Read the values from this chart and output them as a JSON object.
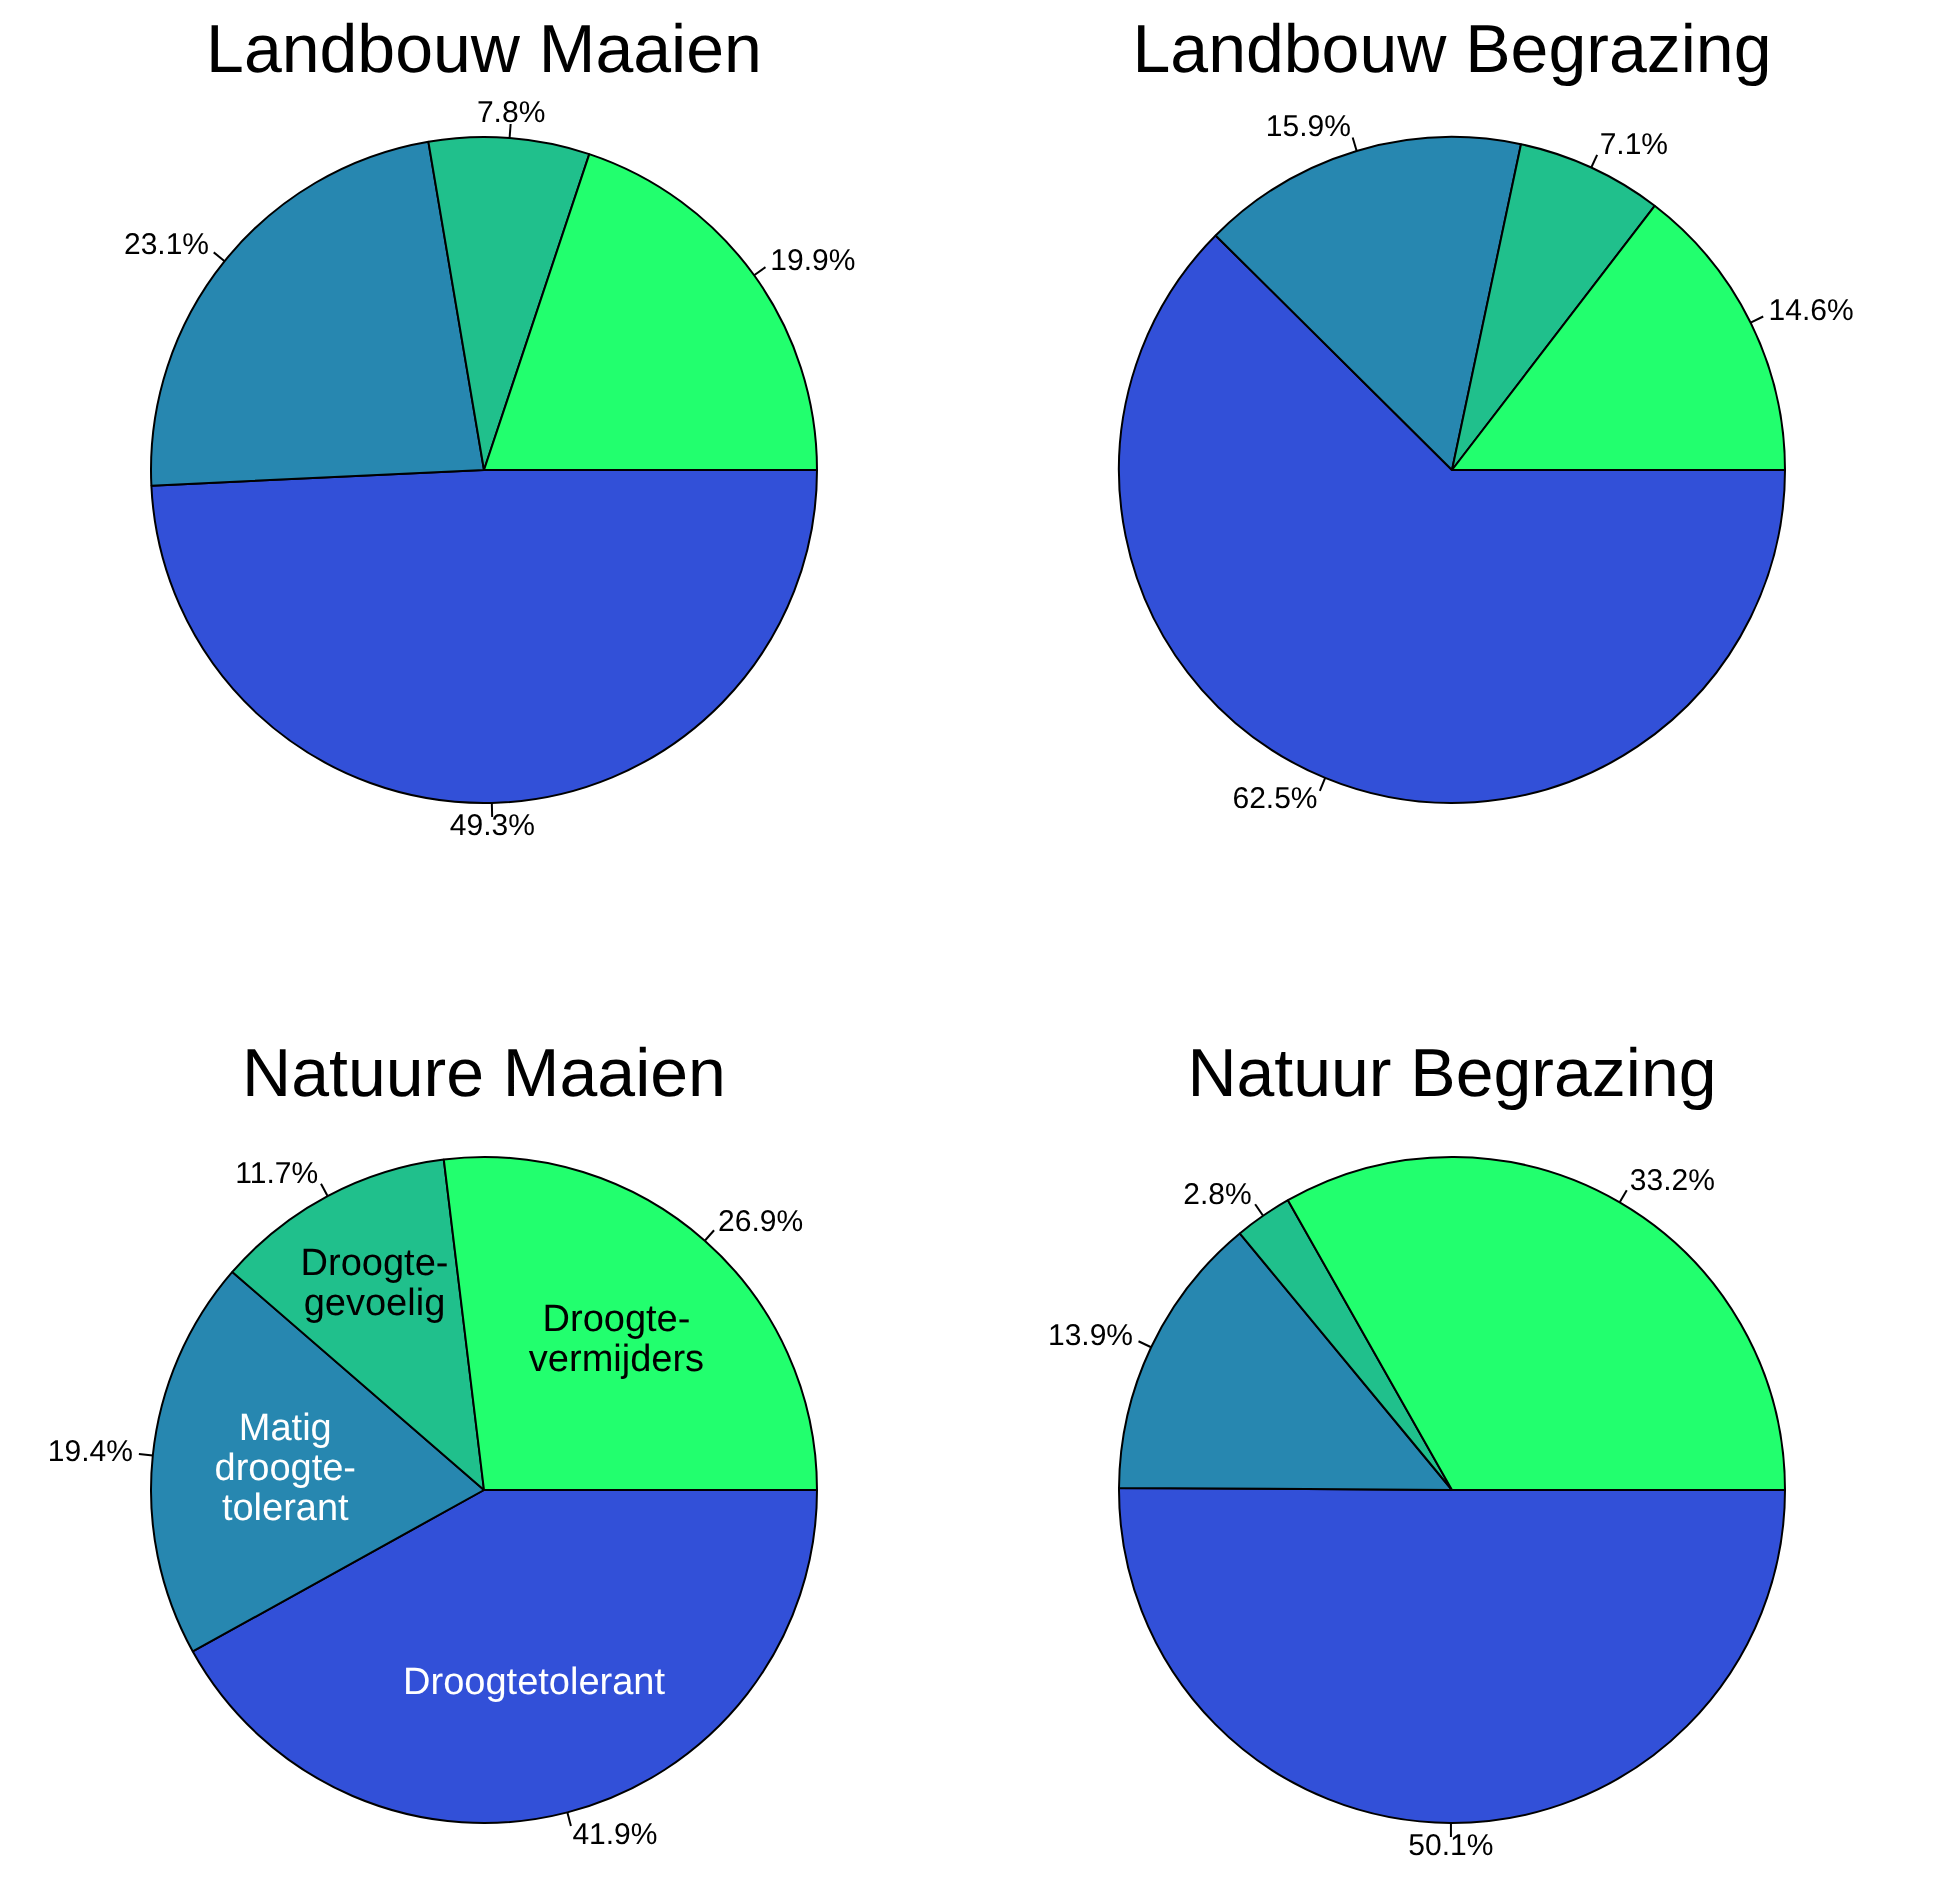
{
  "chart_data": [
    {
      "type": "pie",
      "title": "Landbouw Maaien",
      "categories": [
        null,
        null,
        null,
        null
      ],
      "values": [
        49.3,
        23.1,
        7.8,
        19.9
      ],
      "value_labels": [
        "49.3%",
        "23.1%",
        "7.8%",
        "19.9%"
      ],
      "colors": [
        "#3250d8",
        "#2787b0",
        "#20c08c",
        "#22ff6e"
      ],
      "legend": false
    },
    {
      "type": "pie",
      "title": "Landbouw Begrazing",
      "categories": [
        null,
        null,
        null,
        null
      ],
      "values": [
        62.5,
        15.9,
        7.1,
        14.6
      ],
      "value_labels": [
        "62.5%",
        "15.9%",
        "7.1%",
        "14.6%"
      ],
      "colors": [
        "#3250d8",
        "#2787b0",
        "#20c08c",
        "#22ff6e"
      ],
      "legend": false
    },
    {
      "type": "pie",
      "title": "Natuure Maaien",
      "categories": [
        "Droogtetolerant",
        "Matig\ndroogte-\ntolerant",
        "Droogte-\ngevoelig",
        "Droogte-\nvermijders"
      ],
      "values": [
        41.9,
        19.4,
        11.7,
        26.9
      ],
      "value_labels": [
        "41.9%",
        "19.4%",
        "11.7%",
        "26.9%"
      ],
      "colors": [
        "#3250d8",
        "#2787b0",
        "#20c08c",
        "#22ff6e"
      ],
      "legend": false
    },
    {
      "type": "pie",
      "title": "Natuur Begrazing",
      "categories": [
        null,
        null,
        null,
        null
      ],
      "values": [
        50.1,
        13.9,
        2.8,
        33.2
      ],
      "value_labels": [
        "50.1%",
        "13.9%",
        "2.8%",
        "33.2%"
      ],
      "colors": [
        "#3250d8",
        "#2787b0",
        "#20c08c",
        "#22ff6e"
      ],
      "legend": false
    }
  ]
}
